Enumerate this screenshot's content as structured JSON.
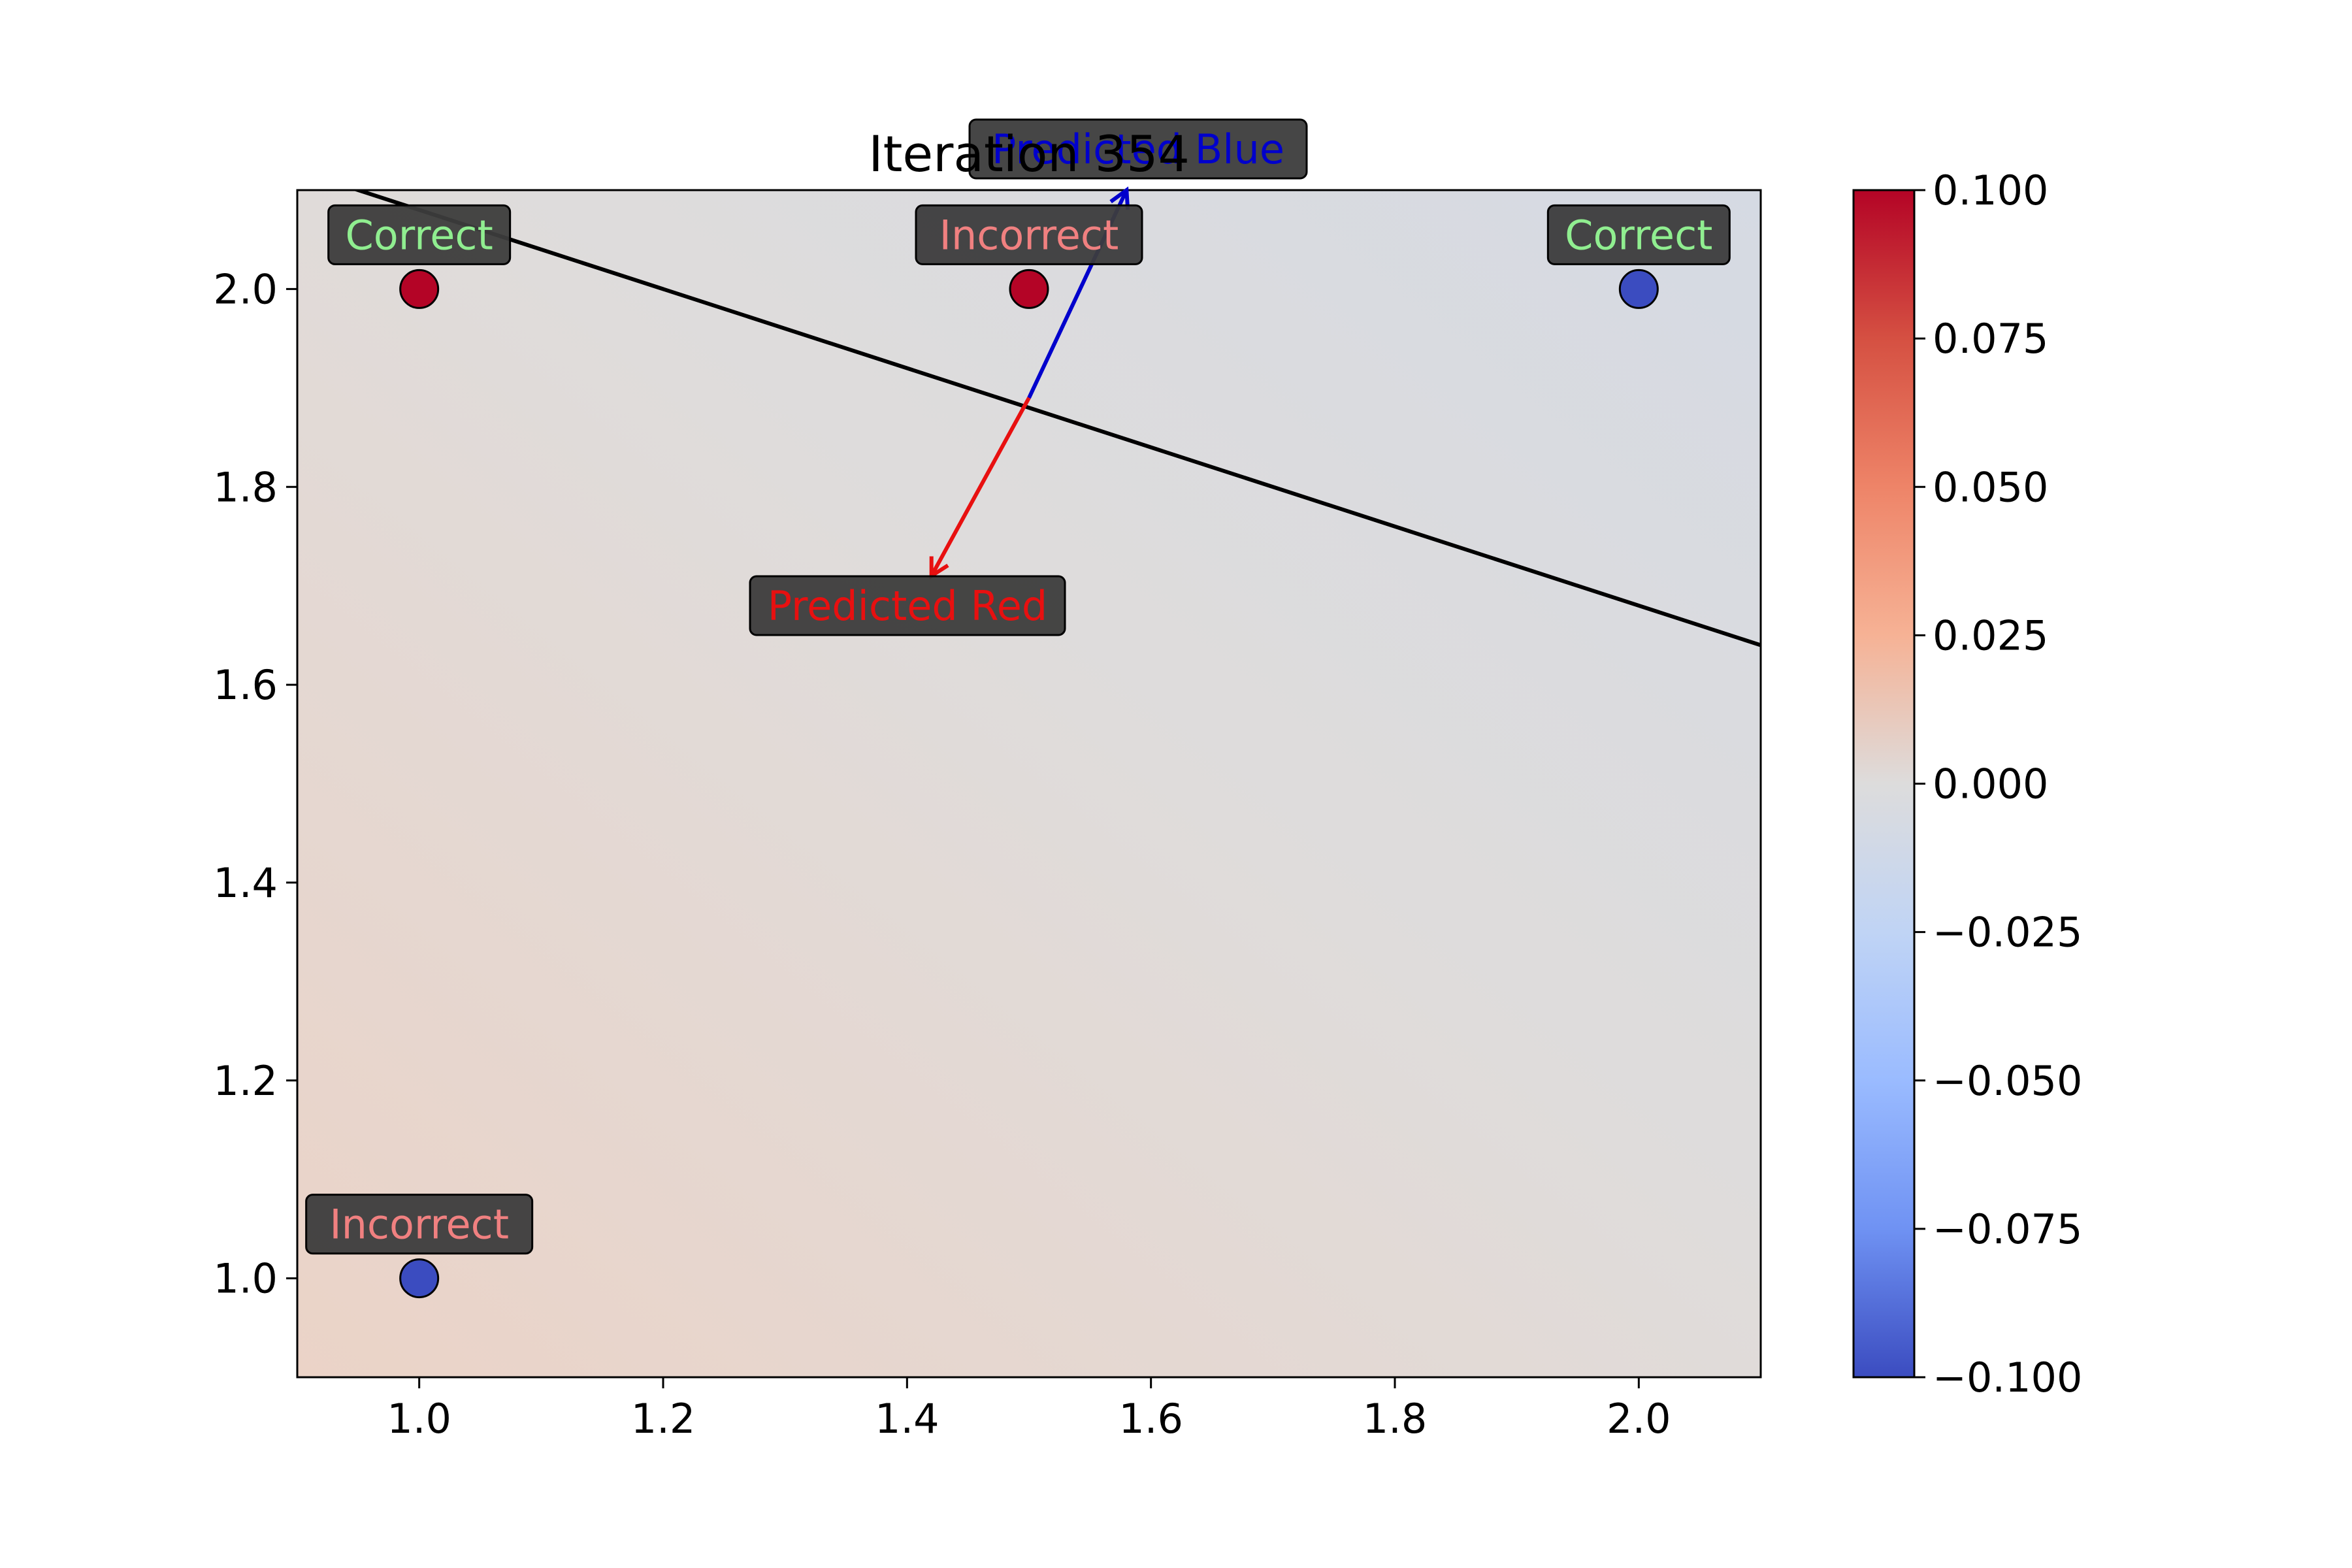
{
  "chart_data": {
    "type": "scatter",
    "title": "Iteration 354",
    "xlabel": "",
    "ylabel": "",
    "xlim": [
      0.9,
      2.1
    ],
    "ylim": [
      0.9,
      2.1
    ],
    "xticks": [
      "1.0",
      "1.2",
      "1.4",
      "1.6",
      "1.8",
      "2.0"
    ],
    "yticks": [
      "1.0",
      "1.2",
      "1.4",
      "1.6",
      "1.8",
      "2.0"
    ],
    "grid": false,
    "points": [
      {
        "x": 1.0,
        "y": 2.0,
        "class": "red",
        "label": "Correct",
        "status": "correct"
      },
      {
        "x": 1.5,
        "y": 2.0,
        "class": "red",
        "label": "Incorrect",
        "status": "incorrect"
      },
      {
        "x": 2.0,
        "y": 2.0,
        "class": "blue",
        "label": "Correct",
        "status": "correct"
      },
      {
        "x": 1.0,
        "y": 1.0,
        "class": "blue",
        "label": "Incorrect",
        "status": "incorrect"
      }
    ],
    "decision_boundary": {
      "x": [
        0.9,
        2.1
      ],
      "y": [
        2.12,
        1.64
      ]
    },
    "arrows": [
      {
        "from": [
          1.5,
          1.89
        ],
        "to": [
          1.58,
          2.1
        ],
        "color": "#0000cc",
        "label": "Predicted Blue"
      },
      {
        "from": [
          1.5,
          1.89
        ],
        "to": [
          1.42,
          1.71
        ],
        "color": "#e81010",
        "label": "Predicted Red"
      }
    ],
    "colorbar": {
      "min": -0.1,
      "max": 0.1,
      "colormap": "coolwarm",
      "ticks": [
        "0.100",
        "0.075",
        "0.050",
        "0.025",
        "0.000",
        "−0.025",
        "−0.050",
        "−0.075",
        "−0.100"
      ]
    }
  },
  "colors": {
    "red_point": "#b40426",
    "blue_point": "#3b4cc0",
    "correct_text": "#90ee90",
    "incorrect_text": "#f08080",
    "label_box": "#3c3c3c",
    "bg_top_right": "#d5dae3",
    "bg_mid": "#dcdcdc",
    "bg_bottom_left": "#ebd3c7"
  }
}
